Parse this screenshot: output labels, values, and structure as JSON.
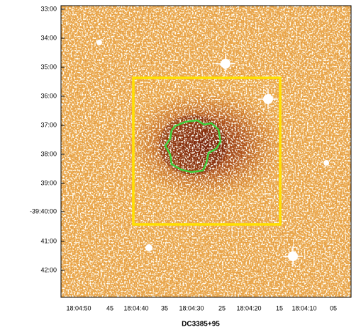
{
  "title": "DC3385+95",
  "y_axis": {
    "labels": [
      "33:00",
      "34:00",
      "35:00",
      "36:00",
      "37:00",
      "38:00",
      "39:00",
      "-39:40:00",
      "41:00",
      "42:00"
    ]
  },
  "x_axis": {
    "labels": [
      "18:04:50",
      "45",
      "18:04:40",
      "35",
      "18:04:30",
      "25",
      "18:04:20",
      "15",
      "18:04:10",
      "05"
    ]
  }
}
